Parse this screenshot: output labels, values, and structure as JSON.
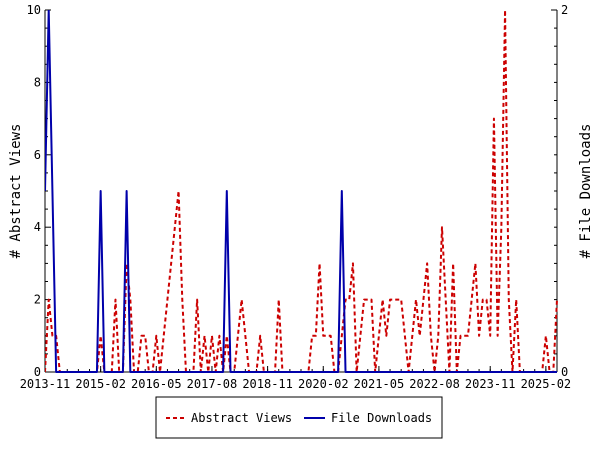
{
  "chart_data": {
    "type": "line",
    "x_ticks": [
      "2013-11",
      "2015-02",
      "2016-05",
      "2017-08",
      "2018-11",
      "2020-02",
      "2021-05",
      "2022-08",
      "2023-11",
      "2025-02"
    ],
    "x_range": [
      "2013-11",
      "2025-05"
    ],
    "ylabel_left": "# Abstract Views",
    "ylabel_right": "# File Downloads",
    "ylim_left": [
      0,
      10
    ],
    "ylim_right": [
      0,
      2
    ],
    "y_ticks_left": [
      "0",
      "2",
      "4",
      "6",
      "8",
      "10"
    ],
    "y_ticks_right": [
      "0",
      "2"
    ],
    "grid": false,
    "legend_position": "bottom-center",
    "series": [
      {
        "name": "Abstract Views",
        "axis": "left",
        "color": "#cc0000",
        "style": "dashed",
        "points": [
          [
            "2013-11",
            0
          ],
          [
            "2013-12",
            2
          ],
          [
            "2014-01",
            1
          ],
          [
            "2014-02",
            1
          ],
          [
            "2014-03",
            0
          ],
          [
            "2014-04",
            0
          ],
          [
            "2014-05",
            0
          ],
          [
            "2014-06",
            0
          ],
          [
            "2014-07",
            0
          ],
          [
            "2014-08",
            0
          ],
          [
            "2014-09",
            0
          ],
          [
            "2014-10",
            0
          ],
          [
            "2014-11",
            0
          ],
          [
            "2014-12",
            0
          ],
          [
            "2015-01",
            0
          ],
          [
            "2015-02",
            1
          ],
          [
            "2015-03",
            0
          ],
          [
            "2015-04",
            0
          ],
          [
            "2015-05",
            0
          ],
          [
            "2015-06",
            2
          ],
          [
            "2015-07",
            0
          ],
          [
            "2015-08",
            0
          ],
          [
            "2015-09",
            3
          ],
          [
            "2015-10",
            2
          ],
          [
            "2015-11",
            0
          ],
          [
            "2015-12",
            0
          ],
          [
            "2016-01",
            1
          ],
          [
            "2016-02",
            1
          ],
          [
            "2016-03",
            0
          ],
          [
            "2016-04",
            0
          ],
          [
            "2016-05",
            1
          ],
          [
            "2016-06",
            0
          ],
          [
            "2016-07",
            1
          ],
          [
            "2016-08",
            2
          ],
          [
            "2016-09",
            3
          ],
          [
            "2016-10",
            4
          ],
          [
            "2016-11",
            5
          ],
          [
            "2016-12",
            2
          ],
          [
            "2017-01",
            0
          ],
          [
            "2017-02",
            0
          ],
          [
            "2017-03",
            0
          ],
          [
            "2017-04",
            2
          ],
          [
            "2017-05",
            0
          ],
          [
            "2017-06",
            1
          ],
          [
            "2017-07",
            0
          ],
          [
            "2017-08",
            1
          ],
          [
            "2017-09",
            0
          ],
          [
            "2017-10",
            1
          ],
          [
            "2017-11",
            0
          ],
          [
            "2017-12",
            1
          ],
          [
            "2018-01",
            0
          ],
          [
            "2018-02",
            0
          ],
          [
            "2018-03",
            1
          ],
          [
            "2018-04",
            2
          ],
          [
            "2018-05",
            1
          ],
          [
            "2018-06",
            0
          ],
          [
            "2018-07",
            0
          ],
          [
            "2018-08",
            0
          ],
          [
            "2018-09",
            1
          ],
          [
            "2018-10",
            0
          ],
          [
            "2018-11",
            0
          ],
          [
            "2018-12",
            0
          ],
          [
            "2019-01",
            0
          ],
          [
            "2019-02",
            2
          ],
          [
            "2019-03",
            0
          ],
          [
            "2019-04",
            0
          ],
          [
            "2019-05",
            0
          ],
          [
            "2019-06",
            0
          ],
          [
            "2019-07",
            0
          ],
          [
            "2019-08",
            0
          ],
          [
            "2019-09",
            0
          ],
          [
            "2019-10",
            0
          ],
          [
            "2019-11",
            1
          ],
          [
            "2019-12",
            1
          ],
          [
            "2020-01",
            3
          ],
          [
            "2020-02",
            1
          ],
          [
            "2020-03",
            1
          ],
          [
            "2020-04",
            1
          ],
          [
            "2020-05",
            0
          ],
          [
            "2020-06",
            0
          ],
          [
            "2020-07",
            1
          ],
          [
            "2020-08",
            2
          ],
          [
            "2020-09",
            2
          ],
          [
            "2020-10",
            3
          ],
          [
            "2020-11",
            0
          ],
          [
            "2020-12",
            1
          ],
          [
            "2021-01",
            2
          ],
          [
            "2021-02",
            2
          ],
          [
            "2021-03",
            2
          ],
          [
            "2021-04",
            0
          ],
          [
            "2021-05",
            1
          ],
          [
            "2021-06",
            2
          ],
          [
            "2021-07",
            1
          ],
          [
            "2021-08",
            2
          ],
          [
            "2021-09",
            2
          ],
          [
            "2021-10",
            2
          ],
          [
            "2021-11",
            2
          ],
          [
            "2021-12",
            1
          ],
          [
            "2022-01",
            0
          ],
          [
            "2022-02",
            1
          ],
          [
            "2022-03",
            2
          ],
          [
            "2022-04",
            1
          ],
          [
            "2022-05",
            2
          ],
          [
            "2022-06",
            3
          ],
          [
            "2022-07",
            1
          ],
          [
            "2022-08",
            0
          ],
          [
            "2022-09",
            1
          ],
          [
            "2022-10",
            4
          ],
          [
            "2022-11",
            2
          ],
          [
            "2022-12",
            0
          ],
          [
            "2023-01",
            3
          ],
          [
            "2023-02",
            0
          ],
          [
            "2023-03",
            1
          ],
          [
            "2023-04",
            1
          ],
          [
            "2023-05",
            1
          ],
          [
            "2023-06",
            2
          ],
          [
            "2023-07",
            3
          ],
          [
            "2023-08",
            1
          ],
          [
            "2023-09",
            2
          ],
          [
            "2023-10",
            2
          ],
          [
            "2023-11",
            1
          ],
          [
            "2023-12",
            7
          ],
          [
            "2024-01",
            1
          ],
          [
            "2024-02",
            4
          ],
          [
            "2024-03",
            10
          ],
          [
            "2024-04",
            2
          ],
          [
            "2024-05",
            0
          ],
          [
            "2024-06",
            2
          ],
          [
            "2024-07",
            0
          ],
          [
            "2024-08",
            0
          ],
          [
            "2024-09",
            0
          ],
          [
            "2024-10",
            0
          ],
          [
            "2024-11",
            0
          ],
          [
            "2024-12",
            0
          ],
          [
            "2025-01",
            0
          ],
          [
            "2025-02",
            1
          ],
          [
            "2025-03",
            0
          ],
          [
            "2025-04",
            0
          ],
          [
            "2025-05",
            2
          ]
        ]
      },
      {
        "name": "File Downloads",
        "axis": "right",
        "color": "#0000aa",
        "style": "solid",
        "points": [
          [
            "2013-11",
            1
          ],
          [
            "2013-12",
            2
          ],
          [
            "2014-01",
            1
          ],
          [
            "2014-02",
            0
          ],
          [
            "2014-03",
            0
          ],
          [
            "2014-04",
            0
          ],
          [
            "2014-05",
            0
          ],
          [
            "2014-06",
            0
          ],
          [
            "2014-07",
            0
          ],
          [
            "2014-08",
            0
          ],
          [
            "2014-09",
            0
          ],
          [
            "2014-10",
            0
          ],
          [
            "2014-11",
            0
          ],
          [
            "2014-12",
            0
          ],
          [
            "2015-01",
            0
          ],
          [
            "2015-02",
            1
          ],
          [
            "2015-03",
            0
          ],
          [
            "2015-04",
            0
          ],
          [
            "2015-05",
            0
          ],
          [
            "2015-06",
            0
          ],
          [
            "2015-07",
            0
          ],
          [
            "2015-08",
            0
          ],
          [
            "2015-09",
            1
          ],
          [
            "2015-10",
            0
          ],
          [
            "2015-11",
            0
          ],
          [
            "2015-12",
            0
          ],
          [
            "2016-01",
            0
          ],
          [
            "2016-02",
            0
          ],
          [
            "2016-03",
            0
          ],
          [
            "2016-04",
            0
          ],
          [
            "2016-05",
            0
          ],
          [
            "2016-06",
            0
          ],
          [
            "2016-07",
            0
          ],
          [
            "2016-08",
            0
          ],
          [
            "2016-09",
            0
          ],
          [
            "2016-10",
            0
          ],
          [
            "2016-11",
            0
          ],
          [
            "2016-12",
            0
          ],
          [
            "2017-01",
            0
          ],
          [
            "2017-02",
            0
          ],
          [
            "2017-03",
            0
          ],
          [
            "2017-04",
            0
          ],
          [
            "2017-05",
            0
          ],
          [
            "2017-06",
            0
          ],
          [
            "2017-07",
            0
          ],
          [
            "2017-08",
            0
          ],
          [
            "2017-09",
            0
          ],
          [
            "2017-10",
            0
          ],
          [
            "2017-11",
            0
          ],
          [
            "2017-12",
            1
          ],
          [
            "2018-01",
            0
          ],
          [
            "2018-02",
            0
          ],
          [
            "2018-03",
            0
          ],
          [
            "2018-04",
            0
          ],
          [
            "2018-05",
            0
          ],
          [
            "2018-06",
            0
          ],
          [
            "2018-07",
            0
          ],
          [
            "2018-08",
            0
          ],
          [
            "2018-09",
            0
          ],
          [
            "2018-10",
            0
          ],
          [
            "2018-11",
            0
          ],
          [
            "2018-12",
            0
          ],
          [
            "2019-01",
            0
          ],
          [
            "2019-02",
            0
          ],
          [
            "2019-03",
            0
          ],
          [
            "2019-04",
            0
          ],
          [
            "2019-05",
            0
          ],
          [
            "2019-06",
            0
          ],
          [
            "2019-07",
            0
          ],
          [
            "2019-08",
            0
          ],
          [
            "2019-09",
            0
          ],
          [
            "2019-10",
            0
          ],
          [
            "2019-11",
            0
          ],
          [
            "2019-12",
            0
          ],
          [
            "2020-01",
            0
          ],
          [
            "2020-02",
            0
          ],
          [
            "2020-03",
            0
          ],
          [
            "2020-04",
            0
          ],
          [
            "2020-05",
            0
          ],
          [
            "2020-06",
            0
          ],
          [
            "2020-07",
            1
          ],
          [
            "2020-08",
            0
          ],
          [
            "2020-09",
            0
          ],
          [
            "2020-10",
            0
          ],
          [
            "2020-11",
            0
          ],
          [
            "2020-12",
            0
          ],
          [
            "2021-01",
            0
          ],
          [
            "2021-02",
            0
          ],
          [
            "2021-03",
            0
          ],
          [
            "2021-04",
            0
          ],
          [
            "2021-05",
            0
          ],
          [
            "2021-06",
            0
          ],
          [
            "2021-07",
            0
          ],
          [
            "2021-08",
            0
          ],
          [
            "2021-09",
            0
          ],
          [
            "2021-10",
            0
          ],
          [
            "2021-11",
            0
          ],
          [
            "2021-12",
            0
          ],
          [
            "2022-01",
            0
          ],
          [
            "2022-02",
            0
          ],
          [
            "2022-03",
            0
          ],
          [
            "2022-04",
            0
          ],
          [
            "2022-05",
            0
          ],
          [
            "2022-06",
            0
          ],
          [
            "2022-07",
            0
          ],
          [
            "2022-08",
            0
          ],
          [
            "2022-09",
            0
          ],
          [
            "2022-10",
            0
          ],
          [
            "2022-11",
            0
          ],
          [
            "2022-12",
            0
          ],
          [
            "2023-01",
            0
          ],
          [
            "2023-02",
            0
          ],
          [
            "2023-03",
            0
          ],
          [
            "2023-04",
            0
          ],
          [
            "2023-05",
            0
          ],
          [
            "2023-06",
            0
          ],
          [
            "2023-07",
            0
          ],
          [
            "2023-08",
            0
          ],
          [
            "2023-09",
            0
          ],
          [
            "2023-10",
            0
          ],
          [
            "2023-11",
            0
          ],
          [
            "2023-12",
            0
          ],
          [
            "2024-01",
            0
          ],
          [
            "2024-02",
            0
          ],
          [
            "2024-03",
            0
          ],
          [
            "2024-04",
            0
          ],
          [
            "2024-05",
            0
          ],
          [
            "2024-06",
            0
          ],
          [
            "2024-07",
            0
          ],
          [
            "2024-08",
            0
          ],
          [
            "2024-09",
            0
          ],
          [
            "2024-10",
            0
          ],
          [
            "2024-11",
            0
          ],
          [
            "2024-12",
            0
          ],
          [
            "2025-01",
            0
          ],
          [
            "2025-02",
            0
          ],
          [
            "2025-03",
            0
          ],
          [
            "2025-04",
            0
          ],
          [
            "2025-05",
            0
          ]
        ]
      }
    ],
    "legend": [
      {
        "label": "Abstract Views",
        "color": "#cc0000",
        "style": "dashed"
      },
      {
        "label": "File Downloads",
        "color": "#0000aa",
        "style": "solid"
      }
    ]
  }
}
